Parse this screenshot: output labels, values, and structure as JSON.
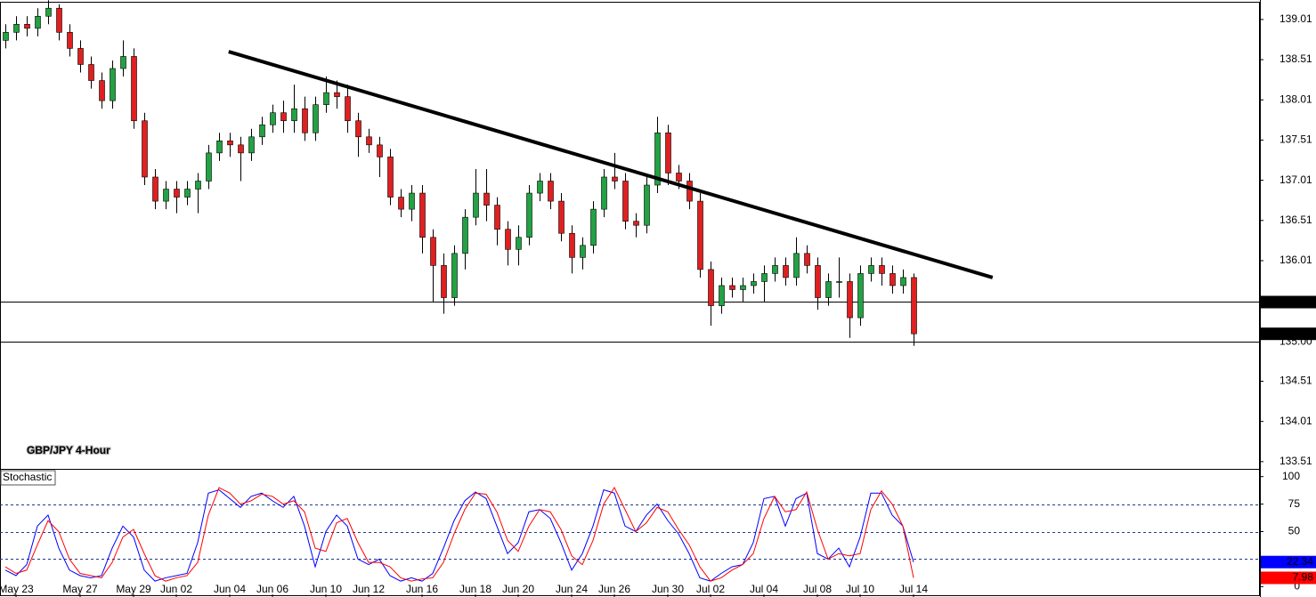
{
  "chart_data": [
    {
      "type": "candlestick",
      "title": "GBP/JPY 4-Hour",
      "up_color": "#22a243",
      "down_color": "#e02020",
      "ylim": [
        133.42,
        139.23
      ],
      "yticks": [
        133.51,
        134.01,
        134.51,
        135.01,
        135.51,
        136.01,
        136.51,
        137.01,
        137.51,
        138.01,
        138.51,
        139.01
      ],
      "levels": [
        {
          "value": 135.5,
          "label": "135.50"
        },
        {
          "value": 135,
          "label": "135.00"
        }
      ],
      "last_price": {
        "value": 135.1,
        "label": "135.10"
      },
      "trendline": {
        "x": [
          20.9,
          92.4
        ],
        "y": [
          138.61,
          135.8
        ]
      },
      "open": [
        138.75,
        138.85,
        138.95,
        138.9,
        139.05,
        139.15,
        138.85,
        138.65,
        138.45,
        138.25,
        138.0,
        138.4,
        138.55,
        137.75,
        137.05,
        136.75,
        136.9,
        136.8,
        136.9,
        137.0,
        137.35,
        137.5,
        137.45,
        137.35,
        137.55,
        137.7,
        137.85,
        137.75,
        137.9,
        137.6,
        137.95,
        138.1,
        138.05,
        137.75,
        137.55,
        137.45,
        137.3,
        136.8,
        136.65,
        136.85,
        136.3,
        135.95,
        135.55,
        136.1,
        136.55,
        136.85,
        136.7,
        136.4,
        136.15,
        136.3,
        136.85,
        137.0,
        136.75,
        136.35,
        136.05,
        136.2,
        136.65,
        137.05,
        137.0,
        136.5,
        136.45,
        136.95,
        137.6,
        137.1,
        137.0,
        136.75,
        135.9,
        135.45,
        135.7,
        135.65,
        135.7,
        135.75,
        135.85,
        135.95,
        135.8,
        136.1,
        135.95,
        135.55,
        135.75,
        135.75,
        135.3,
        135.85,
        135.95,
        135.85,
        135.7,
        135.8
      ],
      "high": [
        138.95,
        139.05,
        139.05,
        139.15,
        139.25,
        139.2,
        138.95,
        138.75,
        138.55,
        138.35,
        138.5,
        138.75,
        138.65,
        137.85,
        137.15,
        137.0,
        137.0,
        137.0,
        137.1,
        137.45,
        137.6,
        137.6,
        137.55,
        137.65,
        137.8,
        137.95,
        138.0,
        138.2,
        138.05,
        138.05,
        138.3,
        138.25,
        138.2,
        137.85,
        137.65,
        137.55,
        137.4,
        136.9,
        136.95,
        136.95,
        136.4,
        136.1,
        136.2,
        136.65,
        137.15,
        137.15,
        136.8,
        136.5,
        136.45,
        136.95,
        137.1,
        137.1,
        136.85,
        136.45,
        136.3,
        136.75,
        137.15,
        137.35,
        137.1,
        136.6,
        137.05,
        137.8,
        137.7,
        137.2,
        137.1,
        136.85,
        136.0,
        135.8,
        135.8,
        135.8,
        135.85,
        135.95,
        136.05,
        136.05,
        136.3,
        136.2,
        136.05,
        135.85,
        136.05,
        135.85,
        135.95,
        136.05,
        136.05,
        135.95,
        135.9,
        135.85
      ],
      "low": [
        138.65,
        138.75,
        138.8,
        138.8,
        138.95,
        138.75,
        138.55,
        138.35,
        138.15,
        137.9,
        137.9,
        138.3,
        137.65,
        136.95,
        136.65,
        136.65,
        136.6,
        136.7,
        136.6,
        136.9,
        137.25,
        137.3,
        137.0,
        137.25,
        137.45,
        137.6,
        137.6,
        137.6,
        137.5,
        137.5,
        137.85,
        137.9,
        137.6,
        137.3,
        137.35,
        137.05,
        136.7,
        136.55,
        136.5,
        136.1,
        135.5,
        135.35,
        135.45,
        135.9,
        136.45,
        136.5,
        136.2,
        135.95,
        135.95,
        136.2,
        136.75,
        136.65,
        136.25,
        135.85,
        135.9,
        136.1,
        136.55,
        136.9,
        136.4,
        136.3,
        136.35,
        136.85,
        136.95,
        136.9,
        136.65,
        135.8,
        135.2,
        135.35,
        135.55,
        135.5,
        135.6,
        135.5,
        135.75,
        135.7,
        135.7,
        135.85,
        135.4,
        135.45,
        135.55,
        135.05,
        135.2,
        135.75,
        135.7,
        135.6,
        135.6,
        134.95
      ],
      "close": [
        138.85,
        138.95,
        138.9,
        139.05,
        139.15,
        138.85,
        138.65,
        138.45,
        138.25,
        138.0,
        138.4,
        138.55,
        137.75,
        137.05,
        136.75,
        136.9,
        136.8,
        136.9,
        137.0,
        137.35,
        137.5,
        137.45,
        137.35,
        137.55,
        137.7,
        137.85,
        137.75,
        137.9,
        137.6,
        137.95,
        138.1,
        138.05,
        137.75,
        137.55,
        137.45,
        137.3,
        136.8,
        136.65,
        136.85,
        136.3,
        135.95,
        135.55,
        136.1,
        136.55,
        136.85,
        136.7,
        136.4,
        136.15,
        136.3,
        136.85,
        137.0,
        136.75,
        136.35,
        136.05,
        136.2,
        136.65,
        137.05,
        137.0,
        136.5,
        136.45,
        136.95,
        137.6,
        137.1,
        137.0,
        136.75,
        135.9,
        135.45,
        135.7,
        135.65,
        135.7,
        135.75,
        135.85,
        135.95,
        135.8,
        136.1,
        135.95,
        135.55,
        135.75,
        135.75,
        135.3,
        135.85,
        135.95,
        135.85,
        135.7,
        135.8,
        135.1
      ]
    },
    {
      "type": "line",
      "title": "Stochastic",
      "categories": [
        null,
        "May 23",
        null,
        null,
        null,
        null,
        null,
        "May 27",
        null,
        null,
        null,
        null,
        "May 29",
        null,
        null,
        null,
        "Jun 02",
        null,
        null,
        null,
        null,
        "Jun 04",
        null,
        null,
        null,
        "Jun 06",
        null,
        null,
        null,
        null,
        "Jun 10",
        null,
        null,
        null,
        "Jun 12",
        null,
        null,
        null,
        null,
        "Jun 16",
        null,
        null,
        null,
        null,
        "Jun 18",
        null,
        null,
        null,
        "Jun 20",
        null,
        null,
        null,
        null,
        "Jun 24",
        null,
        null,
        null,
        "Jun 26",
        null,
        null,
        null,
        null,
        "Jun 30",
        null,
        null,
        null,
        "Jul 02",
        null,
        null,
        null,
        null,
        "Jul 04",
        null,
        null,
        null,
        null,
        "Jul 08",
        null,
        null,
        null,
        "Jul 10",
        null,
        null,
        null,
        null,
        "Jul 14"
      ],
      "ylim": [
        -7,
        107
      ],
      "yticks": [
        0,
        50,
        75,
        100
      ],
      "levels": [
        25,
        50,
        75
      ],
      "series": [
        {
          "color": "#0000ff",
          "values": [
            15,
            10,
            20,
            55,
            65,
            35,
            15,
            10,
            8,
            10,
            35,
            55,
            45,
            15,
            5,
            8,
            10,
            12,
            40,
            85,
            88,
            80,
            72,
            82,
            85,
            78,
            72,
            82,
            55,
            18,
            50,
            65,
            55,
            25,
            20,
            25,
            10,
            5,
            8,
            5,
            12,
            35,
            60,
            78,
            86,
            80,
            55,
            30,
            40,
            68,
            70,
            62,
            40,
            15,
            30,
            55,
            88,
            85,
            55,
            50,
            65,
            75,
            60,
            48,
            30,
            8,
            5,
            12,
            18,
            20,
            40,
            80,
            82,
            55,
            80,
            85,
            30,
            25,
            35,
            18,
            45,
            85,
            85,
            65,
            55,
            22.34
          ]
        },
        {
          "color": "#ff0000",
          "values": [
            18,
            12,
            15,
            38,
            60,
            50,
            25,
            12,
            10,
            8,
            22,
            45,
            52,
            30,
            10,
            5,
            8,
            10,
            22,
            65,
            90,
            85,
            75,
            78,
            84,
            82,
            75,
            78,
            68,
            35,
            32,
            58,
            62,
            40,
            22,
            22,
            18,
            8,
            5,
            7,
            8,
            22,
            48,
            70,
            85,
            84,
            68,
            42,
            32,
            55,
            70,
            68,
            52,
            28,
            20,
            42,
            75,
            90,
            70,
            50,
            58,
            72,
            68,
            52,
            38,
            18,
            5,
            8,
            15,
            20,
            30,
            62,
            82,
            68,
            70,
            86,
            52,
            25,
            30,
            28,
            30,
            70,
            87,
            75,
            55,
            7.98
          ]
        }
      ]
    }
  ]
}
